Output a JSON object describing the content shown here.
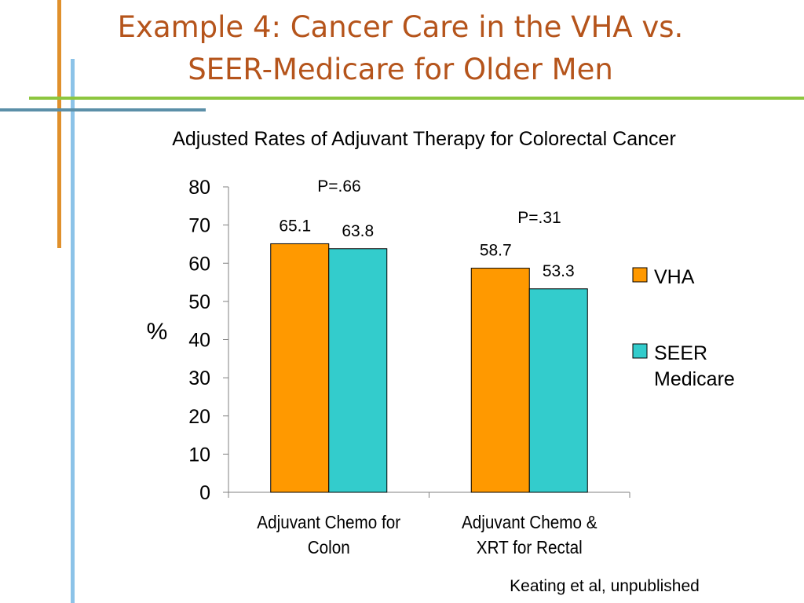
{
  "slide": {
    "title_line1": "Example 4: Cancer Care in the VHA vs.",
    "title_line2": "SEER-Medicare for Older Men",
    "source_note": "Keating et al, unpublished"
  },
  "colors": {
    "title": "#B5541B",
    "vha": "#FF9900",
    "seer": "#33CCCC",
    "deco_orange": "#E0902C",
    "deco_blue": "#8CC3E8",
    "deco_green": "#8DC63F",
    "deco_teal": "#5B8FA8"
  },
  "chart_data": {
    "type": "bar",
    "title": "Adjusted Rates of Adjuvant Therapy for Colorectal Cancer",
    "ylabel": "%",
    "xlabel": "",
    "ylim": [
      0,
      80
    ],
    "yticks": [
      0,
      10,
      20,
      30,
      40,
      50,
      60,
      70,
      80
    ],
    "grid": false,
    "legend_position": "right",
    "categories": [
      [
        "Adjuvant Chemo for",
        "Colon"
      ],
      [
        "Adjuvant Chemo &",
        "XRT for Rectal"
      ]
    ],
    "series": [
      {
        "name": "VHA",
        "legend_lines": [
          "VHA"
        ],
        "values": [
          65.1,
          58.7
        ],
        "labels": [
          "65.1",
          "58.7"
        ]
      },
      {
        "name": "SEER Medicare",
        "legend_lines": [
          "SEER",
          "Medicare"
        ],
        "values": [
          63.8,
          53.3
        ],
        "labels": [
          "63.8",
          "53.3"
        ]
      }
    ],
    "annotations": [
      "P=.66",
      "P=.31"
    ]
  }
}
